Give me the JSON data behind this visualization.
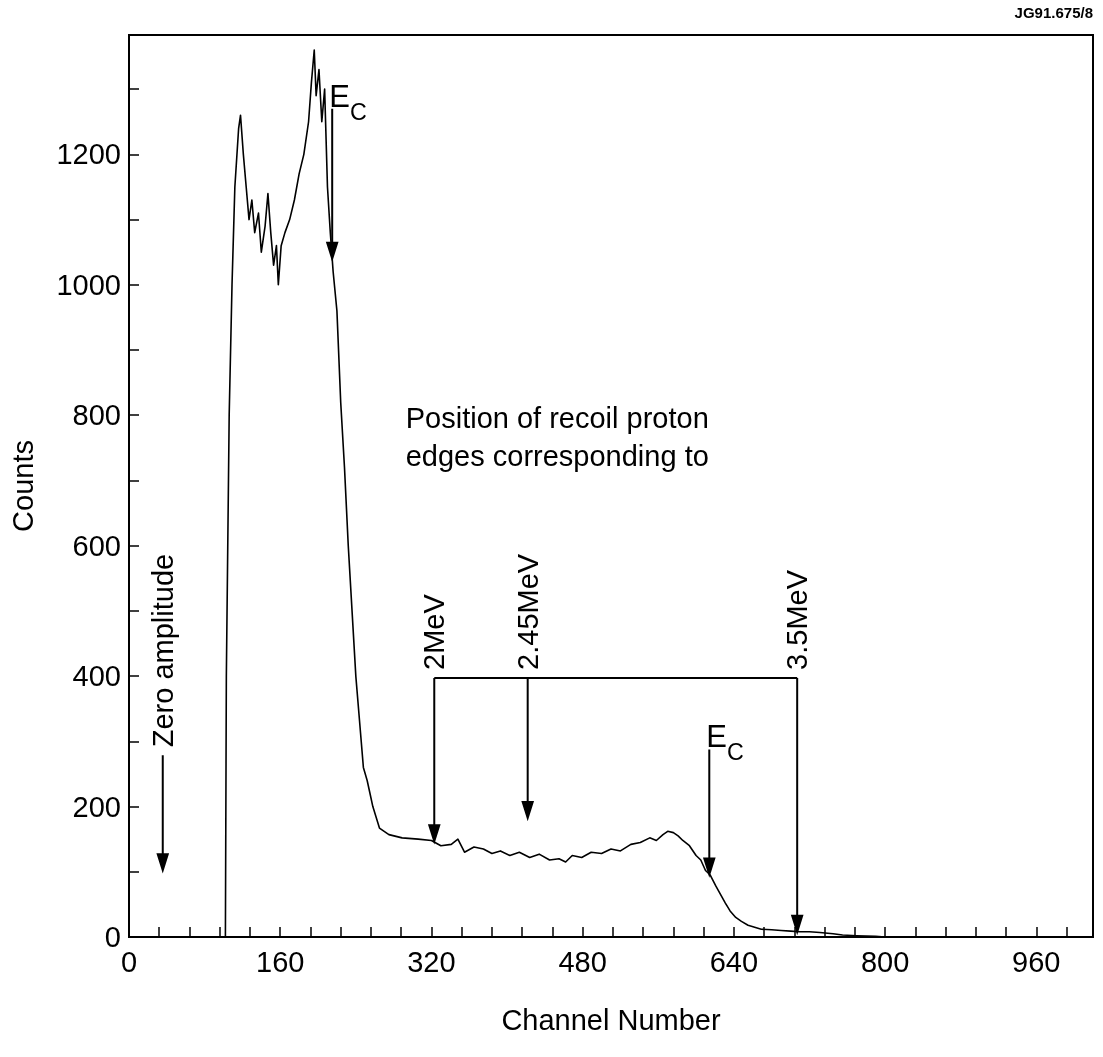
{
  "chart_data": {
    "type": "line",
    "xlabel": "Channel Number",
    "ylabel": "Counts",
    "annotations": [
      "JG91.675/8",
      {
        "text": "E$_{C}$",
        "x": 215,
        "y": 1040
      },
      "Zero amplitude",
      "Position of recoil proton edges corresponding to",
      {
        "text": "2MeV",
        "x": 323,
        "y": 147
      },
      "2.45MeV",
      {
        "text": "3.5MeV",
        "x": 707,
        "y": 8
      },
      {
        "text": "E$_{C}$",
        "x": 614,
        "y": 96
      }
    ],
    "x": [
      0,
      100,
      102,
      103,
      106,
      109,
      112,
      116,
      118,
      121,
      124,
      127,
      130,
      133,
      137,
      140,
      144,
      147,
      150,
      153,
      156,
      158,
      161,
      165,
      170,
      175,
      180,
      185,
      190,
      193,
      196,
      198,
      201,
      204,
      207,
      210,
      213,
      216,
      220,
      224,
      228,
      232,
      236,
      240,
      244,
      248,
      252,
      255,
      258,
      265,
      275,
      289,
      306,
      320,
      330,
      341,
      348,
      355,
      365,
      375,
      384,
      393,
      403,
      413,
      424,
      434,
      445,
      455,
      462,
      469,
      479,
      489,
      500,
      510,
      520,
      531,
      541,
      551,
      558,
      565,
      570,
      576,
      581,
      586,
      593,
      600,
      605,
      610,
      615,
      621,
      626,
      631,
      636,
      642,
      648,
      655,
      662,
      669,
      680,
      690,
      700,
      710,
      720,
      731,
      745,
      755,
      770,
      790,
      800,
      1020
    ],
    "series": [
      {
        "color": "#000000",
        "values": [
          0,
          0,
          0,
          400,
          800,
          1000,
          1150,
          1240,
          1260,
          1200,
          1150,
          1100,
          1130,
          1080,
          1110,
          1050,
          1090,
          1140,
          1080,
          1030,
          1060,
          1000,
          1060,
          1080,
          1100,
          1130,
          1170,
          1200,
          1250,
          1310,
          1360,
          1290,
          1330,
          1250,
          1300,
          1150,
          1080,
          1020,
          960,
          820,
          720,
          600,
          500,
          400,
          330,
          260,
          240,
          220,
          200,
          167,
          157,
          152,
          150,
          148,
          140,
          142,
          150,
          130,
          138,
          135,
          128,
          132,
          125,
          130,
          122,
          127,
          118,
          120,
          115,
          125,
          122,
          130,
          128,
          135,
          132,
          142,
          145,
          152,
          148,
          157,
          162,
          160,
          155,
          148,
          140,
          125,
          118,
          102,
          95,
          78,
          65,
          52,
          40,
          30,
          24,
          18,
          15,
          12,
          11,
          10,
          9,
          8,
          8,
          7,
          5,
          3,
          2,
          1,
          0,
          0
        ]
      }
    ],
    "xlim": [
      0,
      1020
    ],
    "xticks": [
      0,
      {
        "value": 32,
        "label": null
      },
      {
        "value": 64,
        "label": null
      },
      {
        "value": 96,
        "label": null
      },
      {
        "value": 128,
        "label": null
      },
      160,
      {
        "value": 192,
        "label": null
      },
      {
        "value": 224,
        "label": null
      },
      {
        "value": 256,
        "label": null
      },
      {
        "value": 288,
        "label": null
      },
      320,
      {
        "value": 352,
        "label": null
      },
      {
        "value": 384,
        "label": null
      },
      {
        "value": 416,
        "label": null
      },
      {
        "value": 448,
        "label": null
      },
      480,
      {
        "value": 512,
        "label": null
      },
      {
        "value": 544,
        "label": null
      },
      {
        "value": 576,
        "label": null
      },
      {
        "value": 608,
        "label": null
      },
      640,
      {
        "value": 672,
        "label": null
      },
      {
        "value": 704,
        "label": null
      },
      {
        "value": 736,
        "label": null
      },
      {
        "value": 768,
        "label": null
      },
      800,
      {
        "value": 832,
        "label": null
      },
      {
        "value": 864,
        "label": null
      },
      {
        "value": 896,
        "label": null
      },
      {
        "value": 928,
        "label": null
      },
      960,
      {
        "value": 992,
        "label": null
      }
    ],
    "ylim": [
      0,
      1383
    ],
    "yticks": [
      0,
      {
        "value": 100,
        "label": null
      },
      200,
      {
        "value": 300,
        "label": null
      },
      400,
      {
        "value": 500,
        "label": null
      },
      600,
      {
        "value": 700,
        "label": null
      },
      800,
      {
        "value": 900,
        "label": null
      },
      1000,
      {
        "value": 1100,
        "label": null
      },
      1200,
      {
        "value": 1300,
        "label": null
      }
    ],
    "grid": false,
    "marker": "none",
    "line_style": "solid"
  }
}
